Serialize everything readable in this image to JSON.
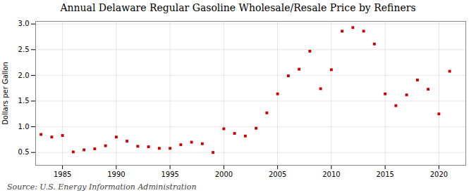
{
  "chart_data": {
    "type": "scatter",
    "title": "Annual Delaware Regular Gasoline Wholesale/Resale Price by Refiners",
    "ylabel": "Dollars per Gallon",
    "source": "Source: U.S. Energy Information Administration",
    "x": [
      1983,
      1984,
      1985,
      1986,
      1987,
      1988,
      1989,
      1990,
      1991,
      1992,
      1993,
      1994,
      1995,
      1996,
      1997,
      1998,
      1999,
      2000,
      2001,
      2002,
      2003,
      2004,
      2005,
      2006,
      2007,
      2008,
      2009,
      2010,
      2011,
      2012,
      2013,
      2014,
      2015,
      2016,
      2017,
      2018,
      2019,
      2020,
      2021
    ],
    "values": [
      0.85,
      0.8,
      0.83,
      0.51,
      0.55,
      0.57,
      0.63,
      0.8,
      0.72,
      0.62,
      0.61,
      0.58,
      0.58,
      0.65,
      0.7,
      0.67,
      0.5,
      0.96,
      0.87,
      0.82,
      0.97,
      1.27,
      1.64,
      1.99,
      2.12,
      2.47,
      1.74,
      2.11,
      2.86,
      2.93,
      2.86,
      2.61,
      1.64,
      1.41,
      1.62,
      1.91,
      1.73,
      1.25,
      2.08
    ],
    "color": "#cc0000",
    "marker": "square",
    "xlim": [
      1982.5,
      2022.5
    ],
    "ylim": [
      0.25,
      3.05
    ],
    "xticks": [
      1985,
      1990,
      1995,
      2000,
      2005,
      2010,
      2015,
      2020
    ],
    "yticks": [
      0.5,
      {
        "value": 1.0,
        "label": "1.0"
      },
      1.5,
      {
        "value": 2.0,
        "label": "2.0"
      },
      2.5,
      {
        "value": 3.0,
        "label": "3.0"
      }
    ],
    "grid": true
  }
}
